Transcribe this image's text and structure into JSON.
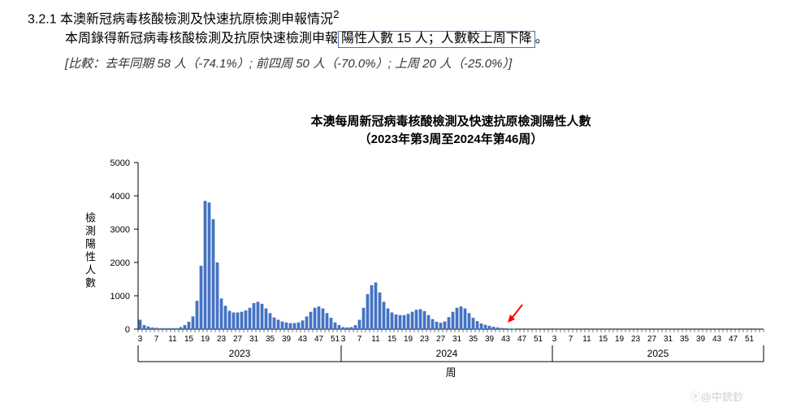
{
  "header": {
    "section_number": "3.2.1",
    "title_rest": "本澳新冠病毒核酸檢測及快速抗原檢測申報情況",
    "superscript": "2",
    "line2_prefix": "本周錄得新冠病毒核酸檢測及抗原快速檢測申報",
    "line2_hi_a": "陽性人數 15 人",
    "line2_sep": "；",
    "line2_hi_b": "人數較上周下降",
    "line2_suffix": "。",
    "comparison": "[比較：去年同期 58 人（-74.1%）; 前四周 50 人（-70.0%）; 上周 20 人（-25.0%）]"
  },
  "chart": {
    "type": "bar",
    "title_line1": "本澳每周新冠病毒核酸檢測及快速抗原檢測陽性人數",
    "title_line2": "（2023年第3周至2024年第46周）",
    "title_fontsize": 15,
    "ylabel": "檢測陽性人數",
    "xlabel": "周",
    "axis_fontsize": 12,
    "tick_fontsize": 11,
    "bar_color": "#4472c4",
    "background_color": "#ffffff",
    "axis_color": "#000000",
    "grid_color": "#000000",
    "arrow_color": "#ff0000",
    "ylim": [
      0,
      5000
    ],
    "ytick_step": 1000,
    "year_labels": [
      "2023",
      "2024",
      "2025"
    ],
    "year_starts": [
      0,
      50,
      102
    ],
    "xtick_labels": [
      "3",
      "7",
      "11",
      "15",
      "19",
      "23",
      "27",
      "31",
      "35",
      "39",
      "43",
      "47",
      "51",
      "3",
      "7",
      "11",
      "15",
      "19",
      "23",
      "27",
      "31",
      "35",
      "39",
      "43",
      "47",
      "51",
      "3",
      "7",
      "11",
      "15",
      "19",
      "23",
      "27",
      "31",
      "35",
      "39",
      "43",
      "47",
      "51"
    ],
    "xtick_positions": [
      0,
      4,
      8,
      12,
      16,
      20,
      24,
      28,
      32,
      36,
      40,
      44,
      48,
      50,
      54,
      58,
      62,
      66,
      70,
      74,
      78,
      82,
      86,
      90,
      94,
      98,
      102,
      106,
      110,
      114,
      118,
      122,
      126,
      130,
      134,
      138,
      142,
      146,
      150
    ],
    "n_slots": 154,
    "arrow_slot": 91,
    "values": [
      280,
      120,
      80,
      50,
      40,
      30,
      30,
      30,
      30,
      30,
      60,
      120,
      220,
      380,
      850,
      1900,
      3850,
      3800,
      3300,
      2000,
      920,
      700,
      550,
      500,
      500,
      520,
      560,
      640,
      780,
      820,
      760,
      620,
      480,
      350,
      280,
      230,
      200,
      180,
      180,
      200,
      260,
      380,
      520,
      640,
      680,
      620,
      480,
      340,
      200,
      120,
      60,
      50,
      60,
      120,
      280,
      640,
      1050,
      1320,
      1400,
      1100,
      820,
      620,
      500,
      440,
      420,
      420,
      460,
      520,
      580,
      600,
      540,
      420,
      300,
      220,
      190,
      230,
      360,
      520,
      640,
      680,
      620,
      480,
      340,
      240,
      170,
      130,
      100,
      70,
      50,
      35,
      25,
      18,
      15,
      0,
      0,
      0,
      0,
      0,
      0,
      0,
      0,
      0,
      0,
      0,
      0,
      0,
      0,
      0,
      0,
      0,
      0,
      0,
      0,
      0,
      0,
      0,
      0,
      0,
      0,
      0,
      0,
      0,
      0,
      0,
      0,
      0,
      0,
      0,
      0,
      0,
      0,
      0,
      0,
      0,
      0,
      0,
      0,
      0,
      0,
      0,
      0,
      0,
      0,
      0,
      0,
      0,
      0,
      0,
      0,
      0,
      0,
      0,
      0,
      0
    ]
  },
  "watermark": "@中銃鈔"
}
